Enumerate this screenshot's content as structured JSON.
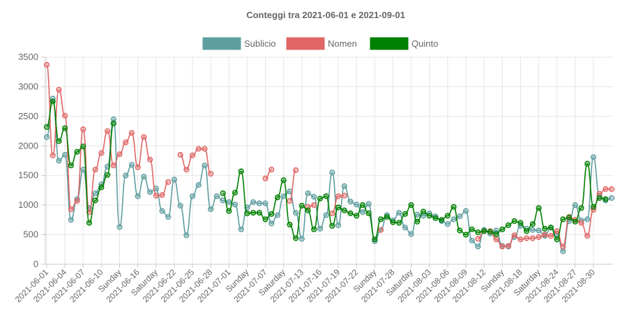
{
  "chart_data": {
    "type": "line",
    "title": "Conteggi tra 2021-06-01 e 2021-09-01",
    "ylim": [
      0,
      3500
    ],
    "yticks": [
      0,
      500,
      1000,
      1500,
      2000,
      2500,
      3000,
      3500
    ],
    "grid": true,
    "legend_position": "top",
    "x_tick_labels": [
      "2021-06-01",
      "2021-06-04",
      "2021-06-07",
      "2021-06-10",
      "Sunday",
      "2021-06-16",
      "Saturday",
      "2021-06-22",
      "2021-06-25",
      "2021-06-28",
      "2021-07-01",
      "Sunday",
      "2021-07-07",
      "Saturday",
      "2021-07-13",
      "2021-07-16",
      "2021-07-19",
      "2021-07-22",
      "Sunday",
      "2021-07-28",
      "Saturday",
      "2021-08-03",
      "2021-08-06",
      "2021-08-09",
      "2021-08-12",
      "Sunday",
      "2021-08-18",
      "Saturday",
      "2021-08-24",
      "2021-08-27",
      "2021-08-30"
    ],
    "series": [
      {
        "name": "Sublicio",
        "color": "#5f9ea0",
        "values": [
          2150,
          2800,
          1750,
          1850,
          750,
          1100,
          1600,
          950,
          1200,
          1350,
          1650,
          2450,
          630,
          1500,
          1680,
          1150,
          1480,
          1220,
          1280,
          900,
          800,
          1430,
          990,
          490,
          1150,
          1340,
          1670,
          930,
          1150,
          1080,
          1050,
          1010,
          590,
          960,
          1050,
          1030,
          1030,
          690,
          830,
          1150,
          1230,
          870,
          430,
          1200,
          1140,
          600,
          830,
          1550,
          660,
          1320,
          1060,
          1010,
          880,
          1020,
          390,
          580,
          830,
          740,
          870,
          620,
          510,
          840,
          820,
          860,
          810,
          730,
          680,
          760,
          810,
          900,
          400,
          300,
          580,
          520,
          570,
          310,
          300,
          460,
          650,
          600,
          580,
          570,
          480,
          620,
          510,
          220,
          730,
          1000,
          740,
          760,
          1810,
          1150,
          1080,
          1120
        ]
      },
      {
        "name": "Nomen",
        "color": "#e06666",
        "values": [
          3370,
          1840,
          2950,
          2510,
          930,
          1070,
          2280,
          880,
          1600,
          1880,
          2250,
          1670,
          1860,
          2060,
          2220,
          1640,
          2150,
          1770,
          1160,
          1170,
          1390,
          null,
          1850,
          1600,
          1840,
          1950,
          1950,
          1530,
          null,
          null,
          null,
          null,
          null,
          null,
          null,
          null,
          1450,
          1600,
          null,
          null,
          1070,
          1590,
          null,
          970,
          1000,
          null,
          null,
          860,
          1150,
          1160,
          null,
          null,
          null,
          null,
          null,
          580,
          null,
          null,
          null,
          null,
          null,
          null,
          null,
          null,
          null,
          null,
          null,
          null,
          null,
          null,
          null,
          430,
          560,
          560,
          420,
          300,
          310,
          490,
          420,
          440,
          440,
          460,
          500,
          480,
          560,
          300,
          800,
          750,
          700,
          480,
          920,
          1190,
          1270,
          1270
        ]
      },
      {
        "name": "Quinto",
        "color": "#008000",
        "values": [
          2320,
          2750,
          2080,
          2300,
          1670,
          1900,
          1990,
          700,
          1080,
          1300,
          1510,
          2380,
          null,
          null,
          null,
          null,
          null,
          null,
          null,
          null,
          null,
          null,
          null,
          null,
          null,
          null,
          null,
          null,
          null,
          1200,
          900,
          1210,
          1570,
          860,
          870,
          870,
          760,
          850,
          1130,
          1420,
          670,
          440,
          990,
          910,
          590,
          1110,
          1150,
          650,
          960,
          910,
          860,
          820,
          1000,
          860,
          420,
          760,
          800,
          710,
          700,
          850,
          1000,
          720,
          890,
          820,
          780,
          750,
          820,
          970,
          570,
          500,
          590,
          540,
          560,
          550,
          510,
          590,
          660,
          730,
          700,
          560,
          680,
          950,
          600,
          620,
          420,
          760,
          790,
          720,
          950,
          1700,
          970,
          1120,
          1100
        ]
      }
    ]
  }
}
